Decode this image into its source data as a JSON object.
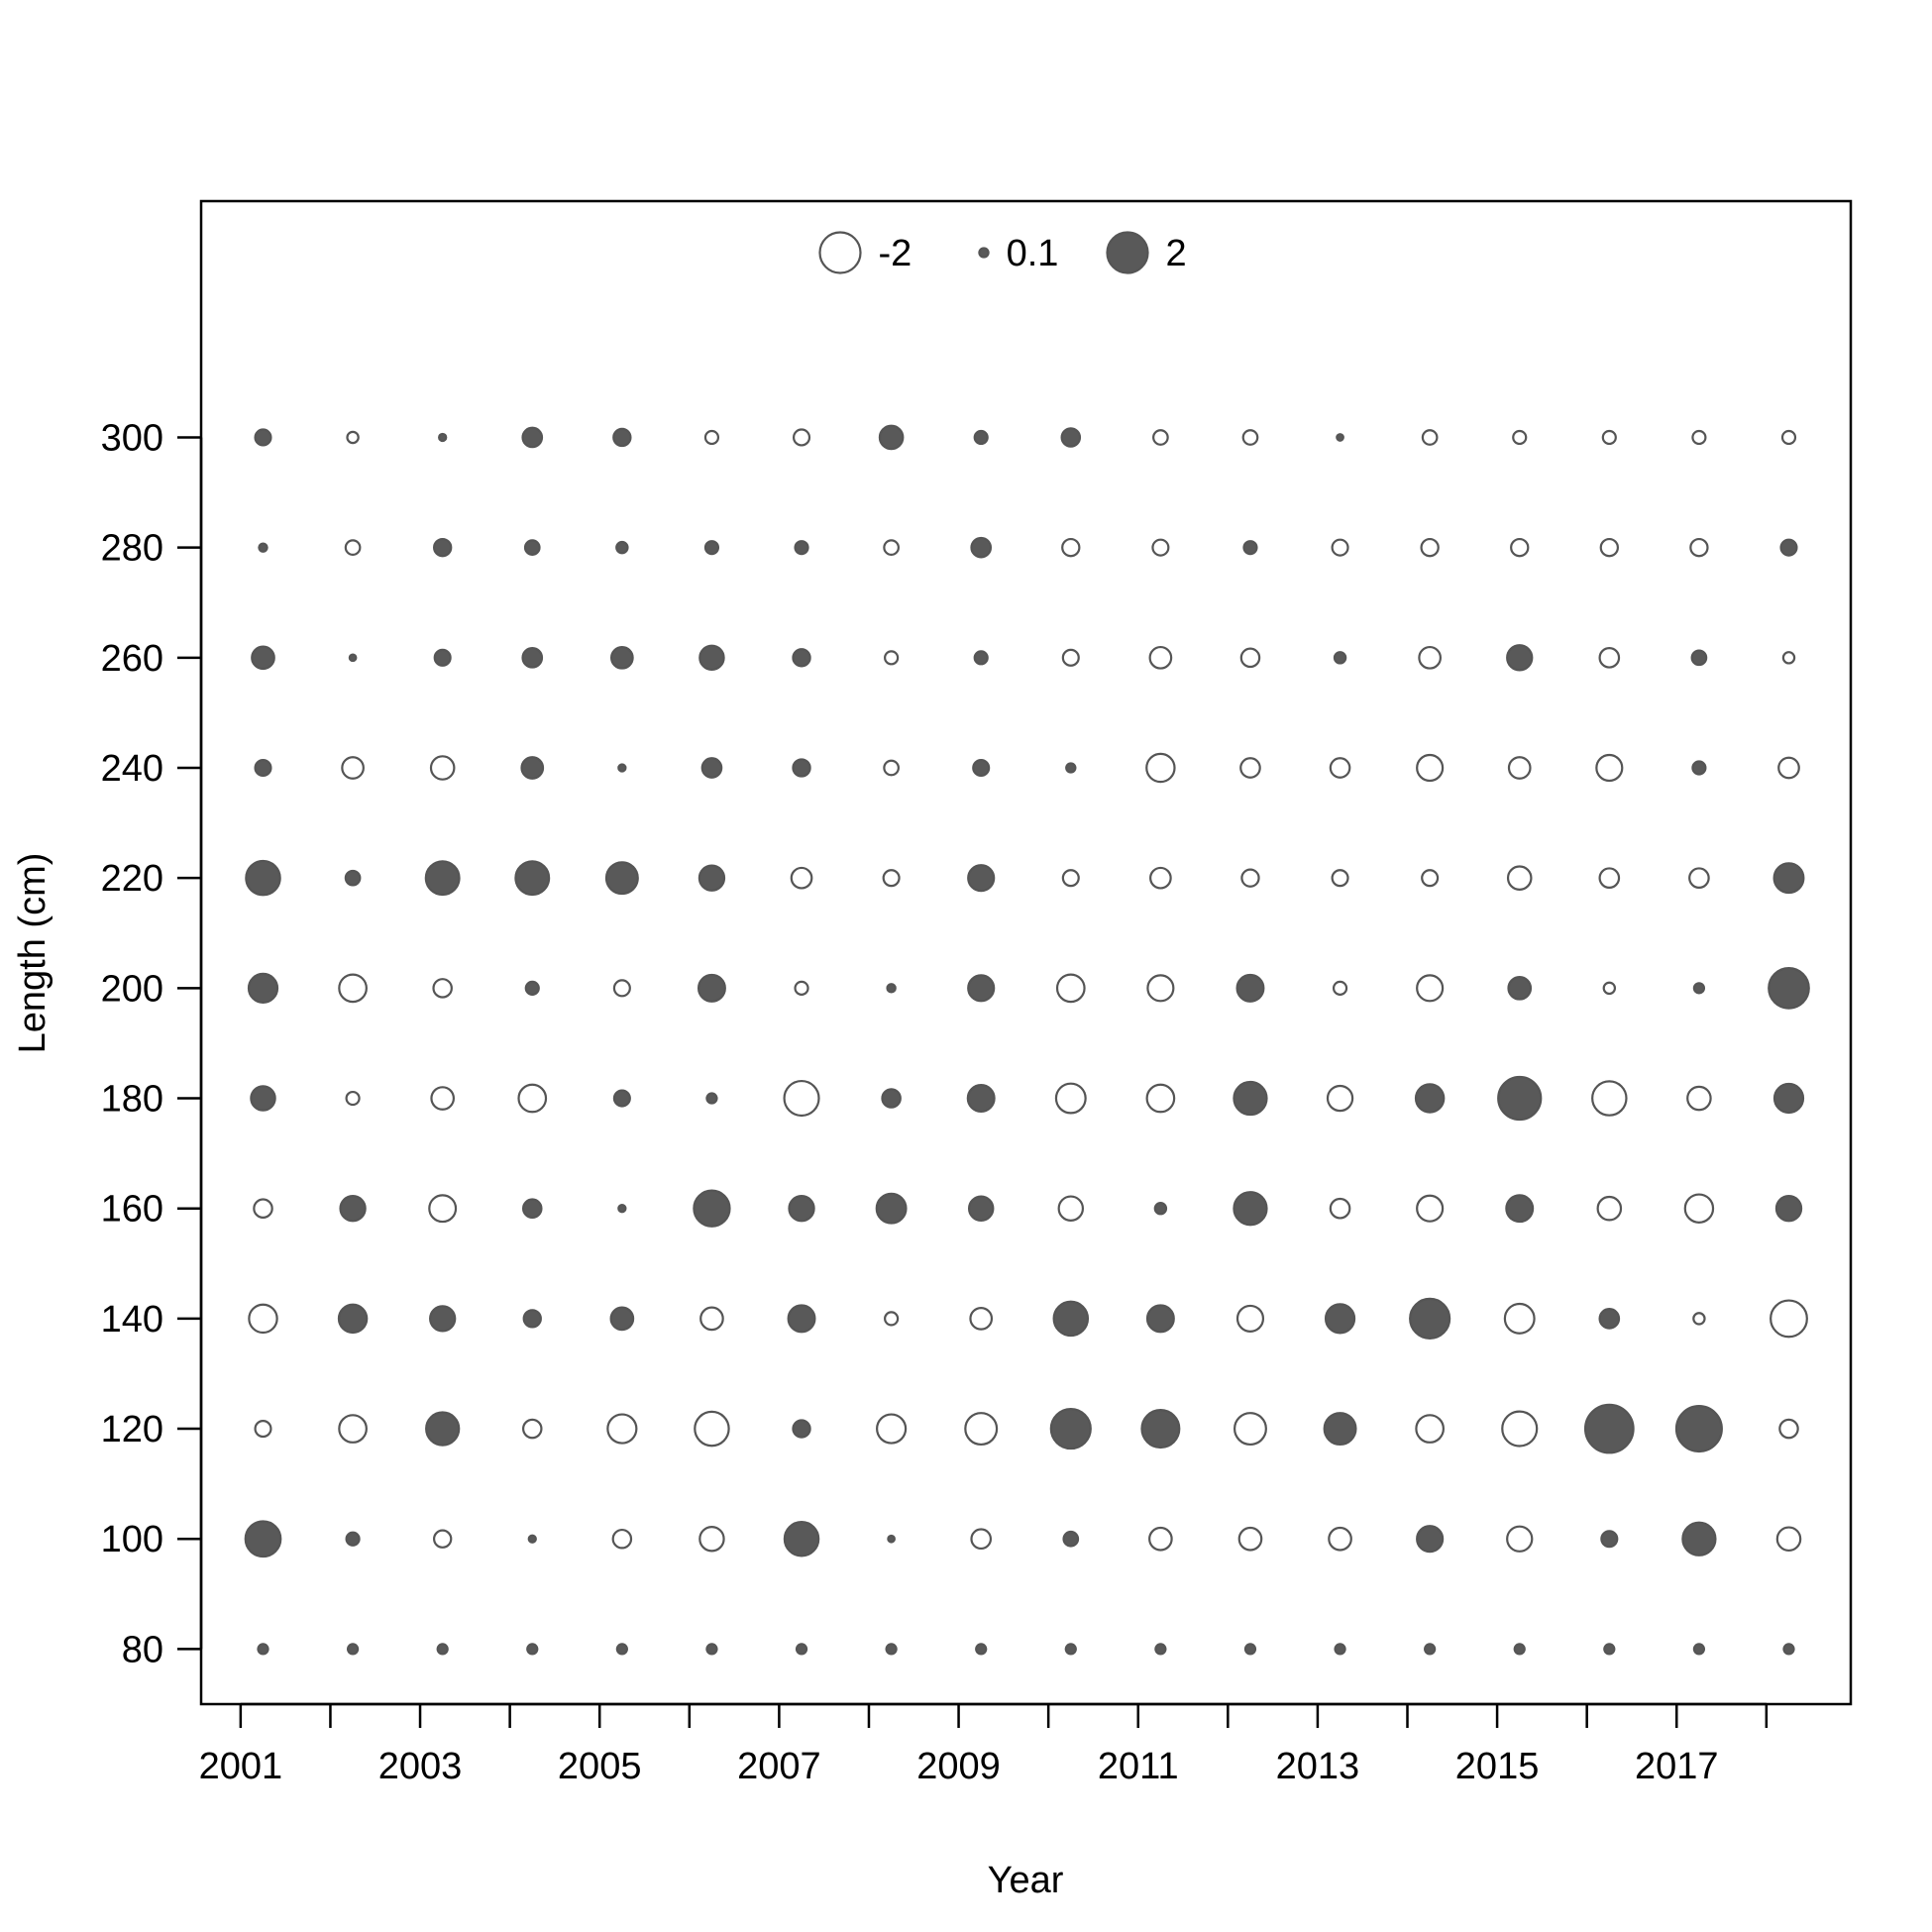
{
  "chart_data": {
    "type": "bubble",
    "xlabel": "Year",
    "ylabel": "Length (cm)",
    "x_tick_labels": [
      "2001",
      "2003",
      "2005",
      "2007",
      "2009",
      "2011",
      "2013",
      "2015",
      "2017"
    ],
    "x_ticks_minor": [
      2001,
      2002,
      2003,
      2004,
      2005,
      2006,
      2007,
      2008,
      2009,
      2010,
      2011,
      2012,
      2013,
      2014,
      2015,
      2016,
      2017,
      2018
    ],
    "y_tick_labels": [
      "80",
      "100",
      "120",
      "140",
      "160",
      "180",
      "200",
      "220",
      "240",
      "260",
      "280",
      "300"
    ],
    "xlim": [
      2000.56,
      2018.94
    ],
    "ylim": [
      70,
      342.9
    ],
    "legend": {
      "position": "top-center",
      "entries": [
        {
          "label": "-2",
          "value": -2
        },
        {
          "label": "0.1",
          "value": 0.1
        },
        {
          "label": "2",
          "value": 2
        }
      ]
    },
    "colors": {
      "positive_fill": "#595959",
      "negative_fill": "#ffffff",
      "stroke": "#555555"
    },
    "years": [
      2001.25,
      2002.25,
      2003.25,
      2004.25,
      2005.25,
      2006.25,
      2007.25,
      2008.25,
      2009.25,
      2010.25,
      2011.25,
      2012.25,
      2013.25,
      2014.25,
      2015.25,
      2016.25,
      2017.25,
      2018.25
    ],
    "lengths": [
      80,
      100,
      120,
      140,
      160,
      180,
      200,
      220,
      240,
      260,
      280,
      300
    ],
    "residuals": [
      [
        0.12,
        0.12,
        0.12,
        0.12,
        0.12,
        0.12,
        0.12,
        0.12,
        0.12,
        0.12,
        0.12,
        0.12,
        0.12,
        0.12,
        0.12,
        0.12,
        0.12,
        0.12
      ],
      [
        1.5,
        0.2,
        -0.35,
        0.06,
        -0.4,
        -0.7,
        1.4,
        0.05,
        -0.45,
        0.25,
        -0.6,
        -0.6,
        -0.6,
        0.8,
        -0.75,
        0.3,
        1.3,
        -0.65
      ],
      [
        -0.3,
        -0.9,
        1.3,
        -0.4,
        -1.0,
        -1.4,
        0.35,
        -1.0,
        -1.2,
        1.9,
        1.7,
        -1.2,
        1.2,
        -0.9,
        -1.45,
        2.8,
        2.5,
        -0.4
      ],
      [
        -0.95,
        0.95,
        0.75,
        0.35,
        0.6,
        -0.6,
        0.85,
        -0.2,
        -0.55,
        1.4,
        0.85,
        -0.8,
        1.0,
        1.9,
        -1.05,
        0.45,
        -0.15,
        -1.6
      ],
      [
        -0.4,
        0.75,
        -0.85,
        0.4,
        0.06,
        1.55,
        0.75,
        1.05,
        0.7,
        -0.7,
        0.15,
        1.3,
        -0.45,
        -0.8,
        0.85,
        -0.65,
        -0.95,
        0.75
      ],
      [
        0.7,
        -0.2,
        -0.6,
        -0.9,
        0.3,
        0.12,
        -1.45,
        0.4,
        0.85,
        -1.05,
        -0.9,
        1.3,
        -0.75,
        0.95,
        2.2,
        -1.4,
        -0.65,
        1.0
      ],
      [
        1.0,
        -0.9,
        -0.4,
        0.2,
        -0.3,
        0.85,
        -0.2,
        0.08,
        0.8,
        -0.9,
        -0.8,
        0.85,
        -0.2,
        -0.8,
        0.6,
        -0.15,
        0.12,
        1.95
      ],
      [
        1.4,
        0.25,
        1.35,
        1.35,
        1.2,
        0.75,
        -0.5,
        -0.3,
        0.8,
        -0.3,
        -0.5,
        -0.35,
        -0.3,
        -0.3,
        -0.65,
        -0.45,
        -0.45,
        1.05
      ],
      [
        0.3,
        -0.55,
        -0.65,
        0.55,
        0.06,
        0.45,
        0.35,
        -0.25,
        0.3,
        0.1,
        -0.95,
        -0.45,
        -0.45,
        -0.8,
        -0.55,
        -0.8,
        0.2,
        -0.5
      ],
      [
        0.6,
        0.05,
        0.3,
        0.45,
        0.55,
        0.7,
        0.35,
        -0.2,
        0.2,
        -0.3,
        -0.55,
        -0.4,
        0.15,
        -0.55,
        0.75,
        -0.45,
        0.25,
        -0.15
      ],
      [
        0.08,
        -0.25,
        0.35,
        0.25,
        0.15,
        0.2,
        0.2,
        -0.25,
        0.45,
        -0.35,
        -0.3,
        0.2,
        -0.3,
        -0.35,
        -0.35,
        -0.35,
        -0.35,
        0.3
      ],
      [
        0.3,
        -0.15,
        0.06,
        0.45,
        0.35,
        -0.2,
        -0.3,
        0.65,
        0.2,
        0.4,
        -0.25,
        -0.25,
        0.05,
        -0.25,
        -0.2,
        -0.2,
        -0.2,
        -0.2
      ]
    ]
  }
}
